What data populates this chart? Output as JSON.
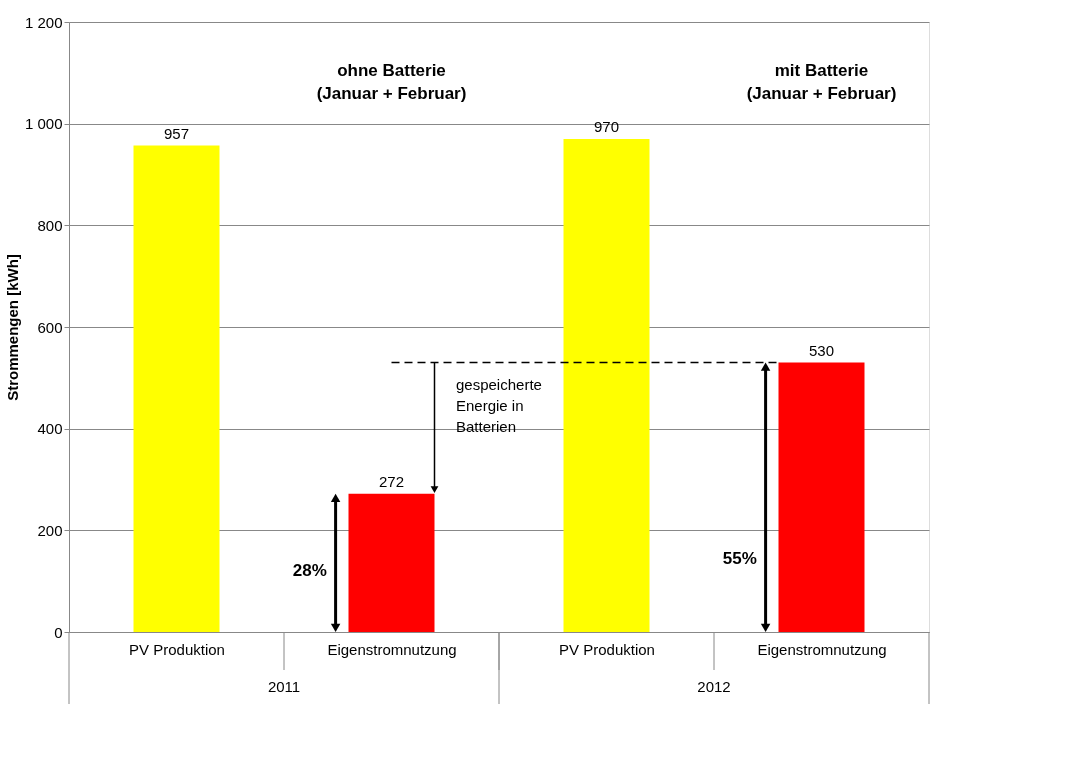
{
  "chart_data": {
    "type": "bar",
    "ylabel": "Strommengen [kWh]",
    "categories": [
      "PV Produktion",
      "Eigenstromnutzung",
      "PV Produktion",
      "Eigenstromnutzung"
    ],
    "values": [
      957,
      272,
      970,
      530
    ],
    "colors": [
      "#ffff00",
      "#ff0000",
      "#ffff00",
      "#ff0000"
    ],
    "ylim": [
      0,
      1200
    ],
    "yticks": [
      0,
      200,
      400,
      600,
      800,
      {
        "value": 1000,
        "label": "1 000"
      },
      {
        "value": 1200,
        "label": "1 200"
      }
    ],
    "grid": "y",
    "data_labels": true,
    "ref_lines": [
      {
        "axis": "y",
        "value": 530,
        "line_style": "dashed",
        "color": "#000000"
      }
    ],
    "annotations": [
      "ohne Batterie\n(Januar + Februar)",
      "mit Batterie\n(Januar + Februar)",
      "gespeicherte\nEnergie in\nBatterien",
      "28%",
      "55%",
      "2011",
      "2012"
    ]
  }
}
